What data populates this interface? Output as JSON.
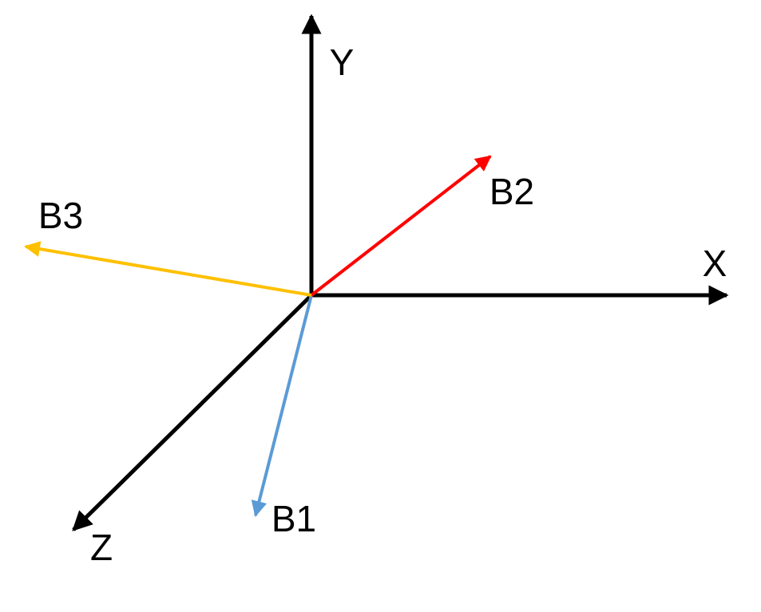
{
  "axes": {
    "y": {
      "label": "Y"
    },
    "x": {
      "label": "X"
    },
    "z": {
      "label": "Z"
    }
  },
  "vectors": [
    {
      "label": "B1"
    },
    {
      "label": "B2"
    },
    {
      "label": "B3"
    }
  ]
}
